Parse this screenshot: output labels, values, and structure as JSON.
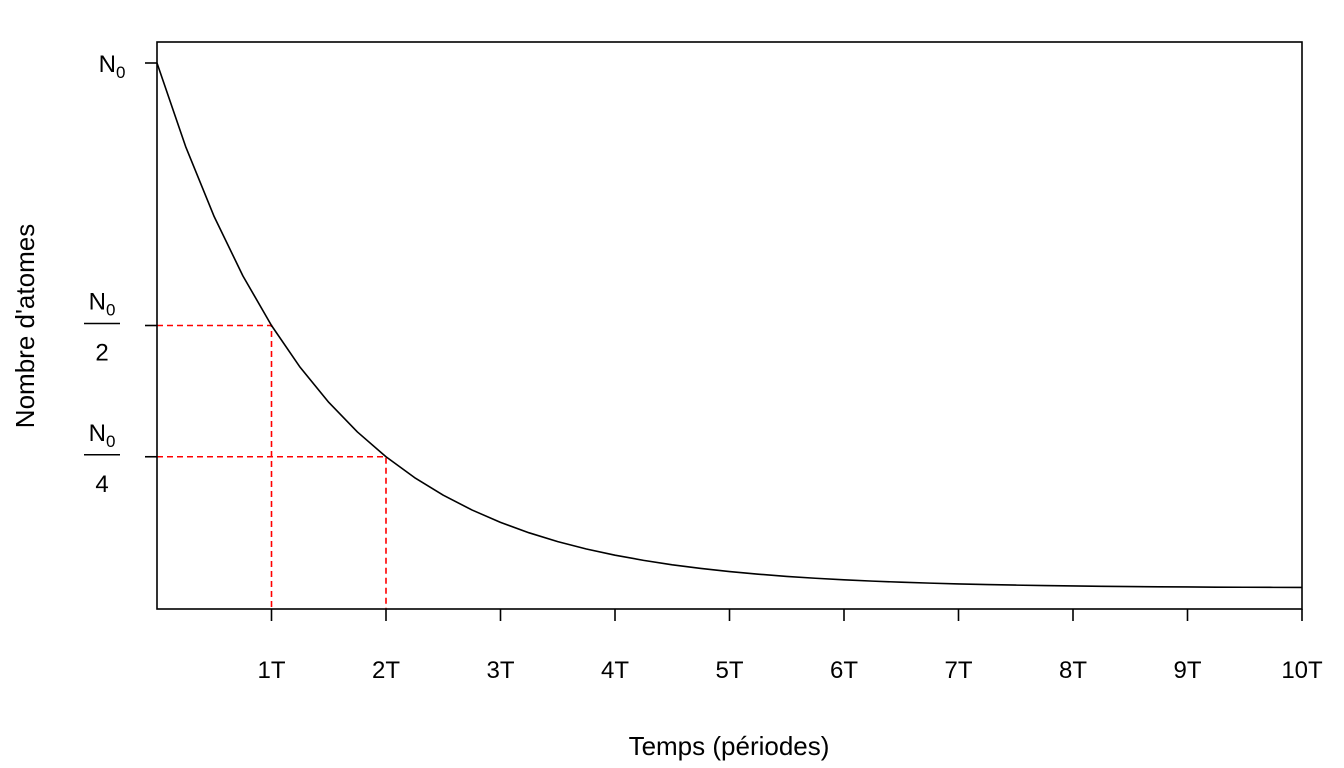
{
  "chart_data": {
    "type": "line",
    "title": "",
    "xlabel": "Temps (périodes)",
    "ylabel": "Nombre d'atomes",
    "xlim": [
      0,
      10
    ],
    "ylim": [
      -0.04,
      1.04
    ],
    "grid": false,
    "x_ticks": [
      {
        "value": 1,
        "label": "1T"
      },
      {
        "value": 2,
        "label": "2T"
      },
      {
        "value": 3,
        "label": "3T"
      },
      {
        "value": 4,
        "label": "4T"
      },
      {
        "value": 5,
        "label": "5T"
      },
      {
        "value": 6,
        "label": "6T"
      },
      {
        "value": 7,
        "label": "7T"
      },
      {
        "value": 8,
        "label": "8T"
      },
      {
        "value": 9,
        "label": "9T"
      },
      {
        "value": 10,
        "label": "10T"
      }
    ],
    "y_ticks": [
      {
        "value": 1,
        "num": "N",
        "sub": "0",
        "den": ""
      },
      {
        "value": 0.5,
        "num": "N",
        "sub": "0",
        "den": "2"
      },
      {
        "value": 0.25,
        "num": "N",
        "sub": "0",
        "den": "4"
      }
    ],
    "series": [
      {
        "color": "#000000",
        "x": [
          0,
          0.25,
          0.5,
          0.75,
          1,
          1.25,
          1.5,
          1.75,
          2,
          2.25,
          2.5,
          2.75,
          3,
          3.25,
          3.5,
          3.75,
          4,
          4.25,
          4.5,
          4.75,
          5,
          5.25,
          5.5,
          5.75,
          6,
          6.25,
          6.5,
          6.75,
          7,
          7.25,
          7.5,
          7.75,
          8,
          8.25,
          8.5,
          8.75,
          9,
          9.25,
          9.5,
          9.75,
          10
        ],
        "y": [
          1,
          0.8409,
          0.7071,
          0.5946,
          0.5,
          0.4204,
          0.3536,
          0.2973,
          0.25,
          0.2102,
          0.1768,
          0.1487,
          0.125,
          0.1051,
          0.0884,
          0.0743,
          0.0625,
          0.0526,
          0.0442,
          0.0372,
          0.03125,
          0.0263,
          0.0221,
          0.0186,
          0.0156,
          0.0131,
          0.011,
          0.0093,
          0.0078,
          0.0066,
          0.0055,
          0.0046,
          0.0039,
          0.0033,
          0.0028,
          0.0023,
          0.002,
          0.0016,
          0.0014,
          0.0012,
          0.001
        ]
      }
    ],
    "reference_lines": [
      {
        "x": 1,
        "y": 0.5,
        "color": "#ff0000",
        "style": "dashed"
      },
      {
        "x": 2,
        "y": 0.25,
        "color": "#ff0000",
        "style": "dashed"
      }
    ]
  }
}
